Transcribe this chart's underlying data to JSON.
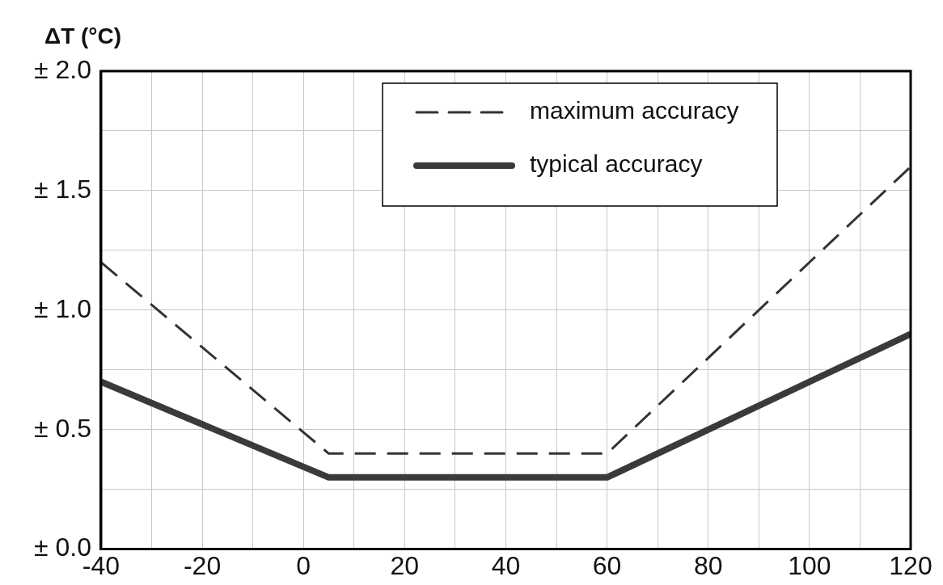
{
  "chart_data": {
    "type": "line",
    "ylabel": "ΔT (°C)",
    "xlim": [
      -40,
      120
    ],
    "xticks": [
      -40,
      {
        "value": -30,
        "label": null
      },
      -20,
      {
        "value": -10,
        "label": null
      },
      0,
      {
        "value": 10,
        "label": null
      },
      20,
      {
        "value": 30,
        "label": null
      },
      40,
      {
        "value": 50,
        "label": null
      },
      60,
      {
        "value": 70,
        "label": null
      },
      80,
      {
        "value": 90,
        "label": null
      },
      100,
      {
        "value": 110,
        "label": null
      },
      120
    ],
    "ylim": [
      0,
      2
    ],
    "yticks": [
      {
        "value": 0,
        "label": "± 0.0"
      },
      {
        "value": 0.25,
        "label": null
      },
      {
        "value": 0.5,
        "label": "± 0.5"
      },
      {
        "value": 0.75,
        "label": null
      },
      {
        "value": 1,
        "label": "± 1.0"
      },
      {
        "value": 1.25,
        "label": null
      },
      {
        "value": 1.5,
        "label": "± 1.5"
      },
      {
        "value": 1.75,
        "label": null
      },
      {
        "value": 2,
        "label": "± 2.0"
      }
    ],
    "grid": true,
    "legend": "top right",
    "marker": "none",
    "series": [
      {
        "name": "maximum accuracy",
        "color": "#333333",
        "line_style": "dashed",
        "x": [
          -40,
          5,
          60,
          120
        ],
        "values": [
          1.2,
          0.4,
          0.4,
          1.6
        ]
      },
      {
        "name": "typical accuracy",
        "color": "#3a3a3a",
        "line_style": "solid",
        "x": [
          -40,
          5,
          60,
          120
        ],
        "values": [
          0.7,
          0.3,
          0.3,
          0.9
        ]
      }
    ]
  }
}
